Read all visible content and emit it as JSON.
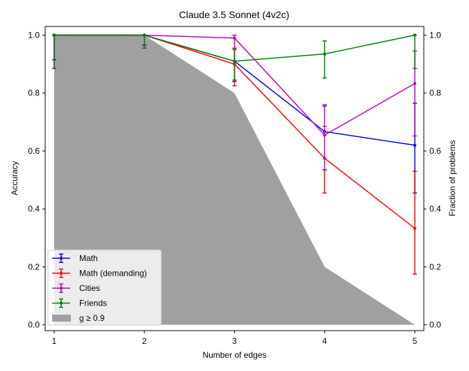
{
  "chart_data": {
    "type": "line",
    "title": "Claude 3.5 Sonnet (4v2c)",
    "xlabel": "Number of edges",
    "ylabel": "Accuracy",
    "ylabel_right": "Fraction of problems",
    "x": [
      1,
      2,
      3,
      4,
      5
    ],
    "xlim": [
      0.9,
      5.1
    ],
    "ylim": [
      -0.02,
      1.03
    ],
    "y2lim": [
      -0.02,
      1.03
    ],
    "xticks": [
      "1",
      "2",
      "3",
      "4",
      "5"
    ],
    "yticks": [
      "0.0",
      "0.2",
      "0.4",
      "0.6",
      "0.8",
      "1.0"
    ],
    "y2ticks": [
      "0.0",
      "0.2",
      "0.4",
      "0.6",
      "0.8",
      "1.0"
    ],
    "grid": false,
    "legend_position": "bottom-left",
    "area": {
      "name": "g ≥ 0.9",
      "color": "#a0a0a0",
      "axis": "right",
      "values": [
        1.0,
        1.0,
        0.8,
        0.2,
        0.0
      ]
    },
    "series": [
      {
        "name": "Math",
        "color": "#0000ff",
        "values": [
          1.0,
          1.0,
          0.91,
          0.667,
          0.62
        ],
        "err_low": [
          0.915,
          0.965,
          0.84,
          0.535,
          0.455
        ],
        "err_high": [
          1.0,
          1.0,
          0.95,
          0.755,
          0.765
        ]
      },
      {
        "name": "Math (demanding)",
        "color": "#ff0000",
        "values": [
          1.0,
          1.0,
          0.9,
          0.575,
          0.333
        ],
        "err_low": [
          0.885,
          0.955,
          0.825,
          0.455,
          0.175
        ],
        "err_high": [
          1.0,
          1.0,
          0.955,
          0.685,
          0.53
        ]
      },
      {
        "name": "Cities",
        "color": "#bf00bf",
        "values": [
          1.0,
          1.0,
          0.99,
          0.655,
          0.833
        ],
        "err_low": [
          0.885,
          0.955,
          0.95,
          0.535,
          0.652
        ],
        "err_high": [
          1.0,
          1.0,
          1.0,
          0.76,
          0.945
        ]
      },
      {
        "name": "Friends",
        "color": "#008000",
        "values": [
          1.0,
          1.0,
          0.91,
          0.935,
          1.0
        ],
        "err_low": [
          0.885,
          0.955,
          0.845,
          0.852,
          0.885
        ],
        "err_high": [
          1.0,
          1.0,
          0.95,
          0.98,
          1.0
        ]
      }
    ]
  }
}
